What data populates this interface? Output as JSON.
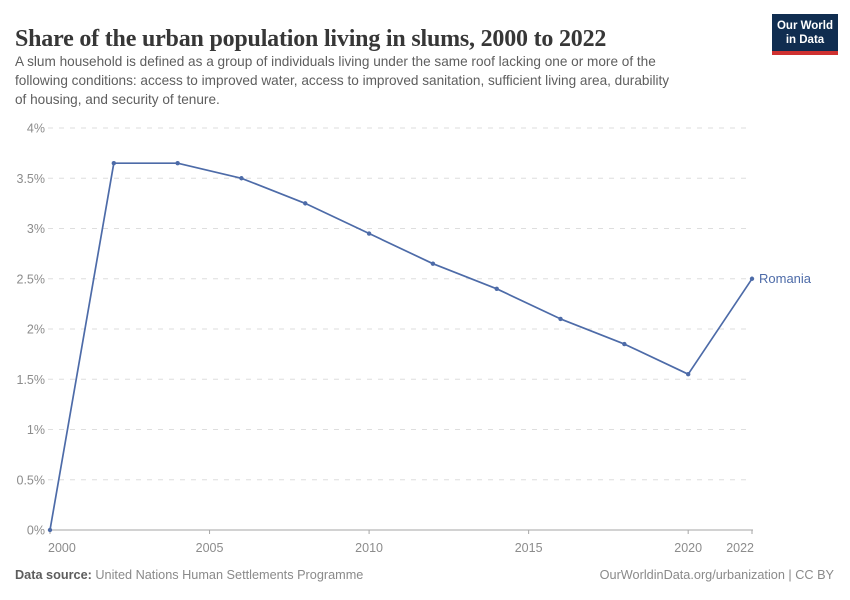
{
  "header": {
    "subtitle_lines": [
      "A slum household is defined as a group of individuals living under the same roof lacking one or more of the",
      "following conditions: access to improved water, access to improved sanitation, sufficient living area, durability",
      "of housing, and security of tenure."
    ],
    "logo": {
      "line1": "Our World",
      "line2": "in Data",
      "bg_color": "#102d50",
      "accent_color": "#cf3130"
    }
  },
  "chart_data": {
    "type": "line",
    "title": "Share of the urban population living in slums, 2000 to 2022",
    "series": [
      {
        "name": "Romania",
        "color": "#4d6ba8",
        "x": [
          2000,
          2002,
          2004,
          2006,
          2008,
          2010,
          2012,
          2014,
          2016,
          2018,
          2020,
          2022
        ],
        "values": [
          0,
          3.65,
          3.65,
          3.5,
          3.25,
          2.95,
          2.65,
          2.4,
          2.1,
          1.85,
          1.55,
          2.5
        ]
      }
    ],
    "xlabel": "",
    "ylabel": "",
    "xlim": [
      2000,
      2022
    ],
    "ylim": [
      0,
      4
    ],
    "x_ticks": [
      2000,
      2005,
      2010,
      2015,
      2020,
      2022
    ],
    "x_tick_labels": [
      "2000",
      "2005",
      "2010",
      "2015",
      "2020",
      "2022"
    ],
    "y_ticks": [
      0,
      0.5,
      1,
      1.5,
      2,
      2.5,
      3,
      3.5,
      4
    ],
    "y_tick_labels": [
      "0%",
      "0.5%",
      "1%",
      "1.5%",
      "2%",
      "2.5%",
      "3%",
      "3.5%",
      "4%"
    ],
    "grid": "horizontal dashed",
    "legend_position": "end-of-line label"
  },
  "footer": {
    "source_label": "Data source:",
    "source_value": "United Nations Human Settlements Programme",
    "link_text": "OurWorldinData.org/urbanization | CC BY"
  }
}
